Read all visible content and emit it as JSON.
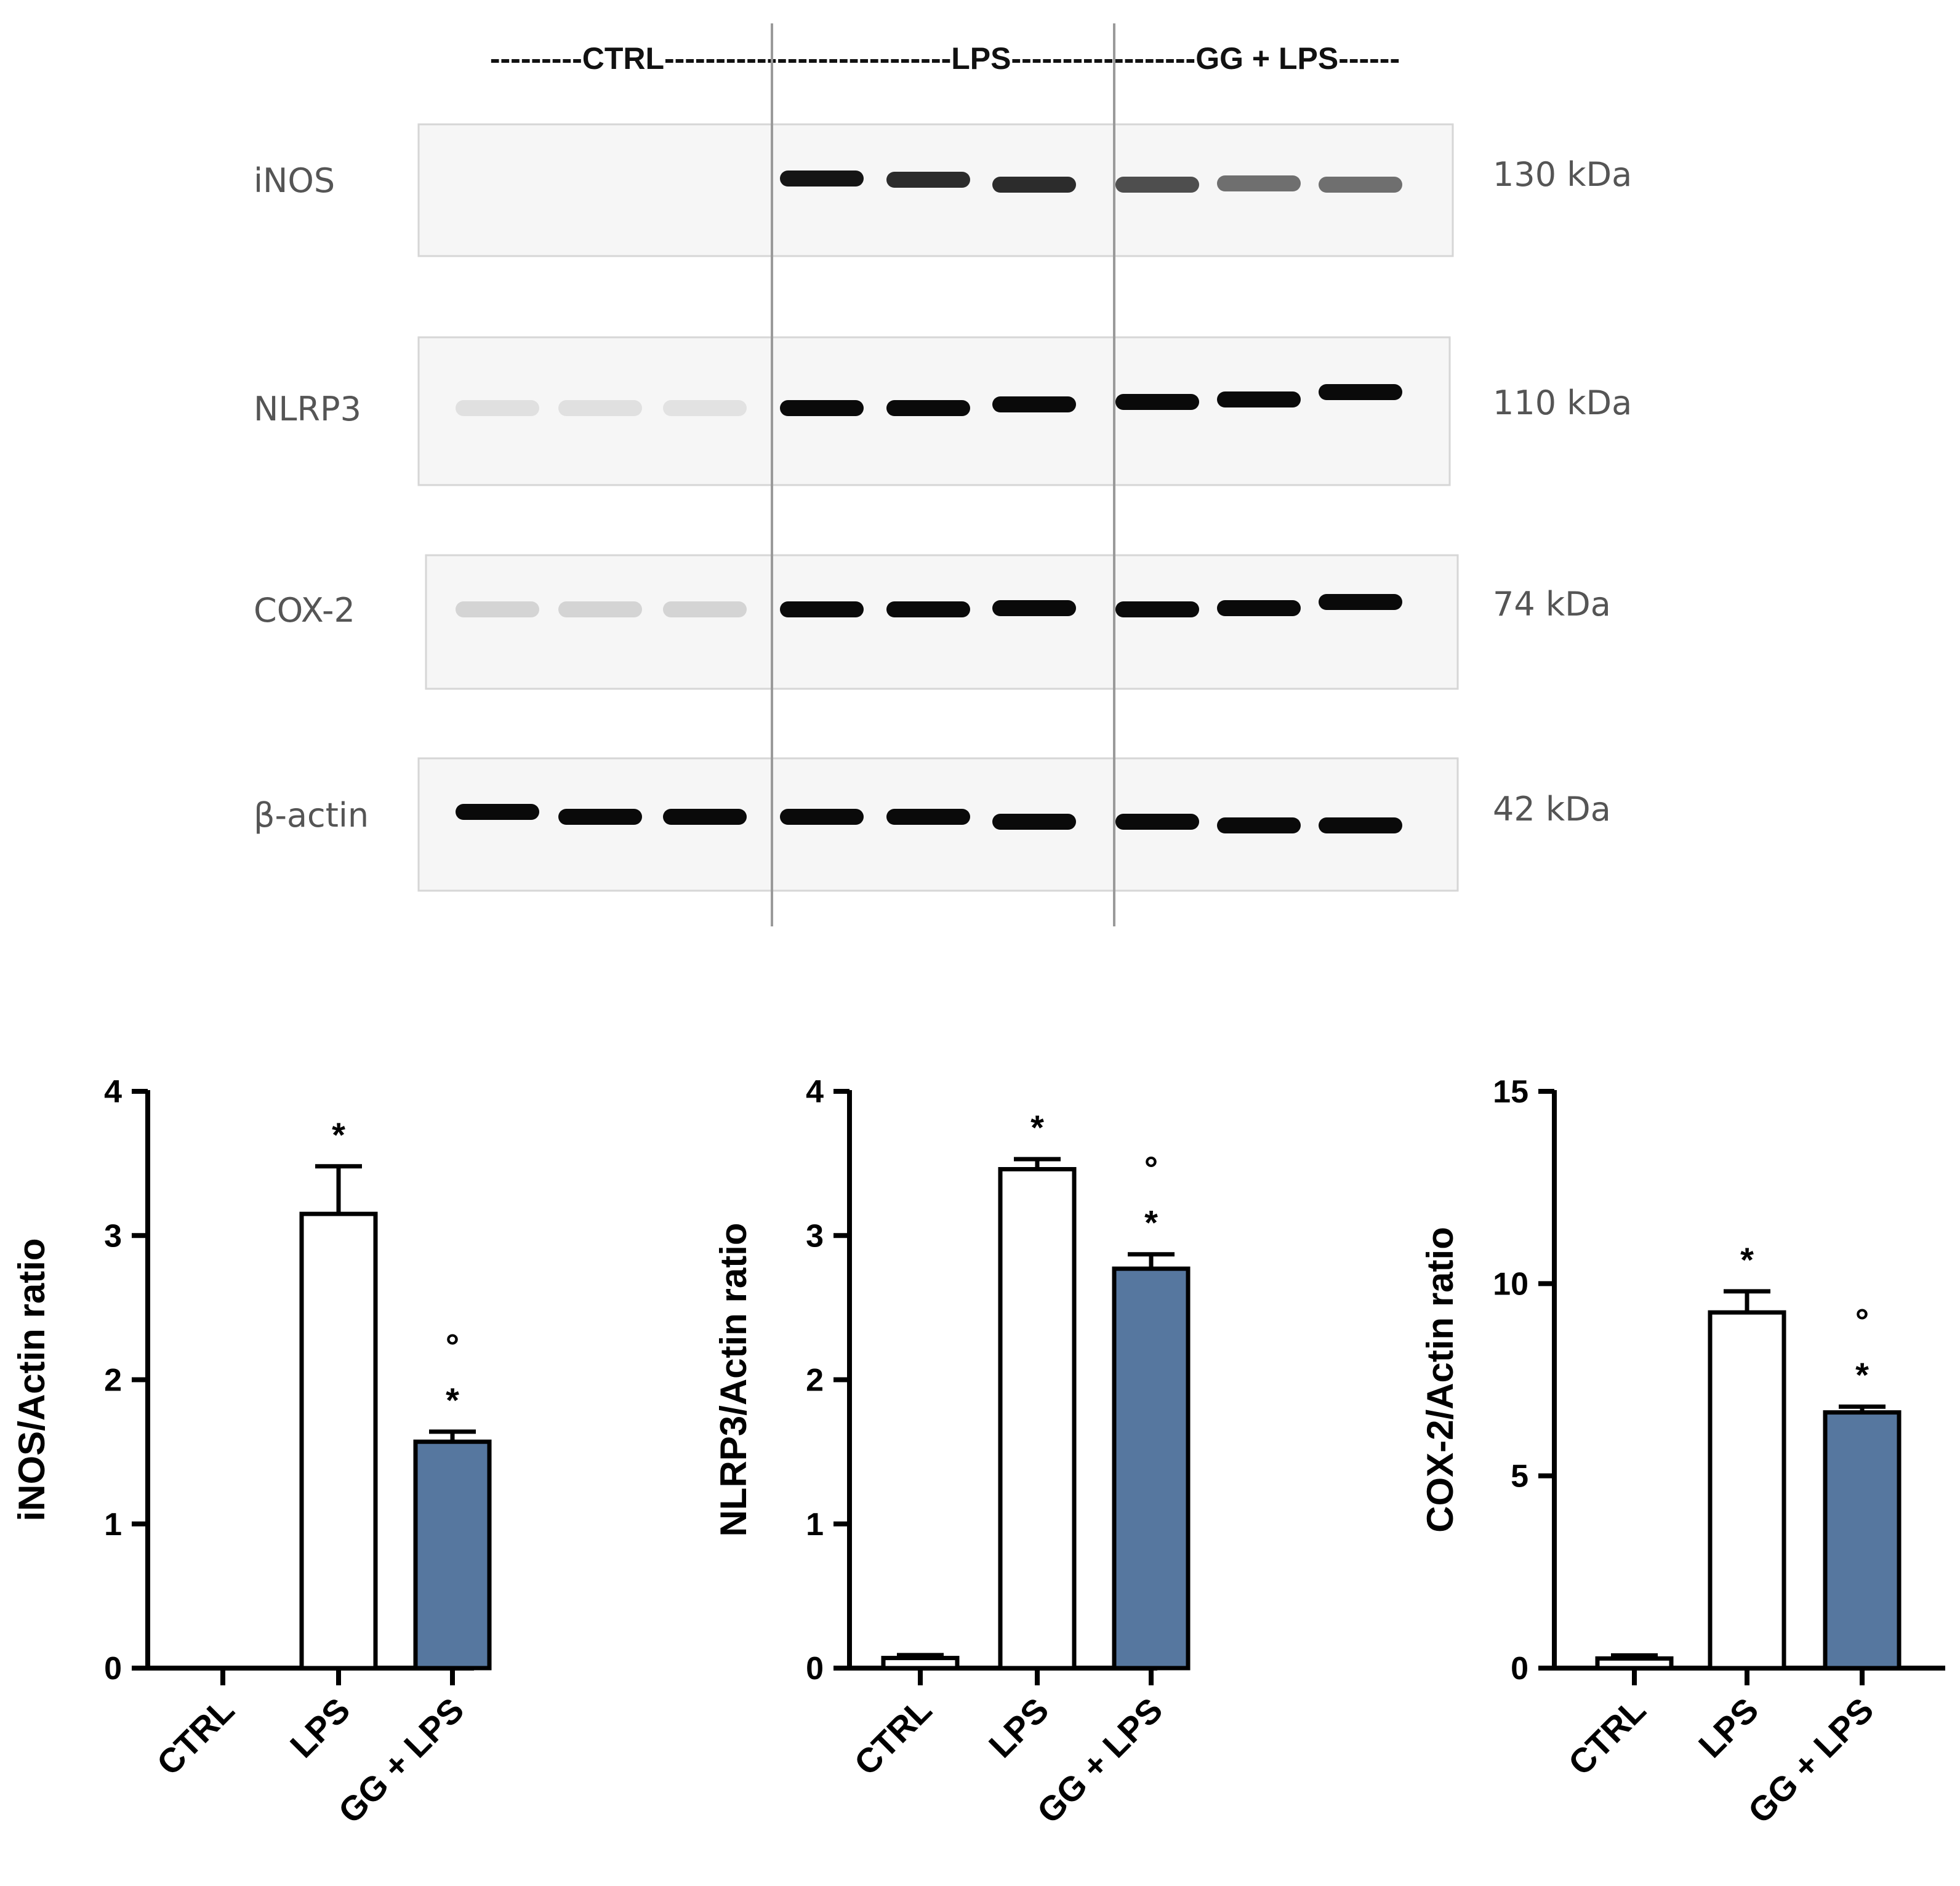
{
  "blot": {
    "group_header": {
      "ctrl_part": "---------CTRL-------------------",
      "lps_part": "---------LPS---------------",
      "gg_part": "---GG + LPS------"
    },
    "rows": [
      {
        "protein": "iNOS",
        "mw": "130 kDa",
        "intensities": [
          0,
          0,
          0,
          0.95,
          0.85,
          0.85,
          0.7,
          0.55,
          0.55
        ],
        "offsets": [
          0,
          0,
          0,
          -10,
          -8,
          0,
          0,
          -2,
          0
        ]
      },
      {
        "protein": "NLRP3",
        "mw": "110 kDa",
        "intensities": [
          0.06,
          0.06,
          0.05,
          1,
          1,
          1,
          1,
          1,
          1
        ],
        "offsets": [
          0,
          0,
          0,
          0,
          0,
          -6,
          -10,
          -14,
          -26
        ]
      },
      {
        "protein": "COX-2",
        "mw": "74 kDa",
        "intensities": [
          0.12,
          0.12,
          0.12,
          1,
          1,
          1,
          1,
          1,
          1
        ],
        "offsets": [
          0,
          0,
          0,
          0,
          0,
          -2,
          0,
          -2,
          -12
        ]
      },
      {
        "protein": "β-actin",
        "mw": "42 kDa",
        "intensities": [
          1,
          1,
          1,
          1,
          1,
          1,
          1,
          1,
          1
        ],
        "offsets": [
          -16,
          -8,
          -8,
          -8,
          -8,
          0,
          0,
          6,
          6
        ]
      }
    ]
  },
  "chart_data": [
    {
      "type": "bar",
      "categories": [
        "CTRL",
        "LPS",
        "GG + LPS"
      ],
      "values": [
        0,
        3.15,
        1.57
      ],
      "errors": [
        0,
        0.33,
        0.07
      ],
      "colors": [
        "#ffffff",
        "#ffffff",
        "#56779f"
      ],
      "annotations": [
        "",
        "*",
        "*"
      ],
      "annotations_top": [
        "",
        "",
        "°"
      ],
      "ylabel": "iNOS/Actin ratio",
      "ylim": [
        0,
        4
      ],
      "yticks": [
        0,
        1,
        2,
        3,
        4
      ]
    },
    {
      "type": "bar",
      "categories": [
        "CTRL",
        "LPS",
        "GG + LPS"
      ],
      "values": [
        0.07,
        3.46,
        2.77
      ],
      "errors": [
        0.02,
        0.07,
        0.1
      ],
      "colors": [
        "#ffffff",
        "#ffffff",
        "#56779f"
      ],
      "annotations": [
        "",
        "*",
        "*"
      ],
      "annotations_top": [
        "",
        "",
        "°"
      ],
      "ylabel": "NLRP3/Actin ratio",
      "ylim": [
        0,
        4
      ],
      "yticks": [
        0,
        1,
        2,
        3,
        4
      ]
    },
    {
      "type": "bar",
      "categories": [
        "CTRL",
        "LPS",
        "GG + LPS"
      ],
      "values": [
        0.25,
        9.25,
        6.65
      ],
      "errors": [
        0.08,
        0.55,
        0.15
      ],
      "colors": [
        "#ffffff",
        "#ffffff",
        "#56779f"
      ],
      "annotations": [
        "",
        "*",
        "*"
      ],
      "annotations_top": [
        "",
        "",
        "°"
      ],
      "ylabel": "COX-2/Actin ratio",
      "ylim": [
        0,
        15
      ],
      "yticks": [
        0,
        5,
        10,
        15
      ]
    }
  ]
}
